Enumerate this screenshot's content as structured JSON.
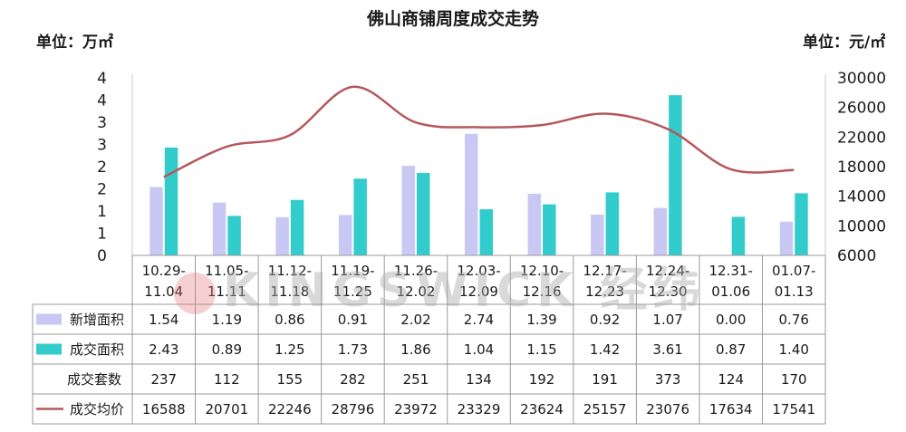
{
  "chart_data": {
    "type": "bar",
    "title": "佛山商铺周度成交走势",
    "left_unit": "单位：万㎡",
    "right_unit": "单位：元/㎡",
    "left_ticks": [
      "0",
      "1",
      "1",
      "2",
      "2",
      "3",
      "3",
      "4",
      "4"
    ],
    "left_ylim": [
      0,
      4
    ],
    "right_ticks": [
      "6000",
      "10000",
      "14000",
      "18000",
      "22000",
      "26000",
      "30000"
    ],
    "right_ylim": [
      6000,
      30000
    ],
    "categories": [
      [
        "10.29-",
        "11.04"
      ],
      [
        "11.05-",
        "11.11"
      ],
      [
        "11.12-",
        "11.18"
      ],
      [
        "11.19-",
        "11.25"
      ],
      [
        "11.26-",
        "12.02"
      ],
      [
        "12.03-",
        "12.09"
      ],
      [
        "12.10-",
        "12.16"
      ],
      [
        "12.17-",
        "12.23"
      ],
      [
        "12.24-",
        "12.30"
      ],
      [
        "12.31-",
        "01.06"
      ],
      [
        "01.07-",
        "01.13"
      ]
    ],
    "series": [
      {
        "name": "新增面积",
        "kind": "bar",
        "axis": "left",
        "color": "#c9c8f4",
        "values": [
          1.54,
          1.19,
          0.86,
          0.91,
          2.02,
          2.74,
          1.39,
          0.92,
          1.07,
          0.0,
          0.76
        ],
        "labels": [
          "1.54",
          "1.19",
          "0.86",
          "0.91",
          "2.02",
          "2.74",
          "1.39",
          "0.92",
          "1.07",
          "0.00",
          "0.76"
        ]
      },
      {
        "name": "成交面积",
        "kind": "bar",
        "axis": "left",
        "color": "#33cccc",
        "values": [
          2.43,
          0.89,
          1.25,
          1.73,
          1.86,
          1.04,
          1.15,
          1.42,
          3.61,
          0.87,
          1.4
        ],
        "labels": [
          "2.43",
          "0.89",
          "1.25",
          "1.73",
          "1.86",
          "1.04",
          "1.15",
          "1.42",
          "3.61",
          "0.87",
          "1.40"
        ]
      },
      {
        "name": "成交套数",
        "kind": "table",
        "color": "",
        "values": [
          237,
          112,
          155,
          282,
          251,
          134,
          192,
          191,
          373,
          124,
          170
        ],
        "labels": [
          "237",
          "112",
          "155",
          "282",
          "251",
          "134",
          "192",
          "191",
          "373",
          "124",
          "170"
        ]
      },
      {
        "name": "成交均价",
        "kind": "line",
        "axis": "right",
        "color": "#b5585c",
        "values": [
          16588,
          20701,
          22246,
          28796,
          23972,
          23329,
          23624,
          25157,
          23076,
          17634,
          17541
        ],
        "labels": [
          "16588",
          "20701",
          "22246",
          "28796",
          "23972",
          "23329",
          "23624",
          "25157",
          "23076",
          "17634",
          "17541"
        ]
      }
    ],
    "watermark": "KINGSWICK 经纬"
  }
}
